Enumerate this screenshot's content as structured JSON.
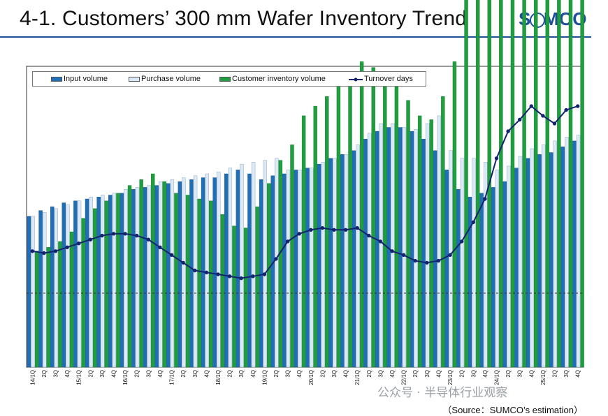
{
  "header": {
    "title": "4-1. Customers’ 300 mm Wafer Inventory Trend",
    "logo_text": "SUMCO"
  },
  "footer": {
    "source": "（Source：SUMCO’s estimation）",
    "watermark": "公众号 · 半导体行业观察"
  },
  "colors": {
    "input": "#1f6fb8",
    "purchase": "#dbe9f6",
    "inventory": "#1e9e3e",
    "turnover": "#13236e",
    "accent": "#1f4e9a"
  },
  "chart_data": {
    "type": "bar",
    "title": "",
    "xlabel": "",
    "ylabel": "",
    "reference_line": "dashed horizontal line",
    "legend_position": "top-left",
    "grid": false,
    "categories": [
      "14/1Q",
      "2Q",
      "3Q",
      "4Q",
      "15/1Q",
      "2Q",
      "3Q",
      "4Q",
      "16/1Q",
      "2Q",
      "3Q",
      "4Q",
      "17/1Q",
      "2Q",
      "3Q",
      "4Q",
      "18/1Q",
      "2Q",
      "3Q",
      "4Q",
      "19/1Q",
      "2Q",
      "3Q",
      "4Q",
      "20/1Q",
      "2Q",
      "3Q",
      "4Q",
      "21/1Q",
      "2Q",
      "3Q",
      "4Q",
      "22/1Q",
      "2Q",
      "3Q",
      "4Q",
      "23/1Q",
      "2Q",
      "3Q",
      "4Q",
      "24/1Q",
      "2Q",
      "3Q",
      "4Q",
      "25/1Q",
      "2Q",
      "3Q",
      "4Q"
    ],
    "series": [
      {
        "name": "Input volume",
        "type": "bar",
        "values": [
          78,
          81,
          83,
          85,
          86,
          87,
          88,
          89,
          90,
          92,
          93,
          94,
          95,
          96,
          97,
          98,
          98,
          100,
          102,
          100,
          97,
          99,
          100,
          102,
          103,
          105,
          108,
          110,
          112,
          118,
          122,
          124,
          124,
          122,
          118,
          112,
          102,
          92,
          88,
          90,
          93,
          96,
          103,
          108,
          110,
          111,
          114,
          117
        ]
      },
      {
        "name": "Purchase volume",
        "type": "bar",
        "values": [
          78,
          80,
          82,
          84,
          86,
          88,
          89,
          90,
          92,
          93,
          94,
          96,
          97,
          98,
          99,
          100,
          101,
          103,
          105,
          106,
          107,
          108,
          102,
          102,
          103,
          106,
          108,
          110,
          115,
          121,
          126,
          126,
          124,
          123,
          126,
          130,
          112,
          108,
          108,
          106,
          102,
          104,
          109,
          113,
          115,
          117,
          119,
          120
        ]
      },
      {
        "name": "Customer inventory volume",
        "type": "bar",
        "values": [
          60,
          62,
          65,
          70,
          77,
          82,
          86,
          90,
          94,
          97,
          100,
          96,
          90,
          89,
          87,
          86,
          79,
          73,
          72,
          83,
          95,
          107,
          115,
          130,
          135,
          140,
          145,
          152,
          158,
          155,
          150,
          145,
          138,
          130,
          128,
          140,
          158,
          210,
          260,
          290,
          320,
          345,
          330,
          314,
          295,
          282,
          270,
          262
        ]
      },
      {
        "name": "Turnover days",
        "type": "line",
        "values": [
          60,
          59,
          60,
          62,
          64,
          66,
          68,
          69,
          69,
          68,
          66,
          62,
          58,
          54,
          50,
          49,
          48,
          47,
          46,
          47,
          48,
          56,
          65,
          69,
          71,
          72,
          71,
          71,
          72,
          68,
          65,
          60,
          58,
          55,
          54,
          55,
          58,
          65,
          75,
          87,
          108,
          122,
          128,
          135,
          130,
          126,
          133,
          135
        ]
      }
    ]
  }
}
